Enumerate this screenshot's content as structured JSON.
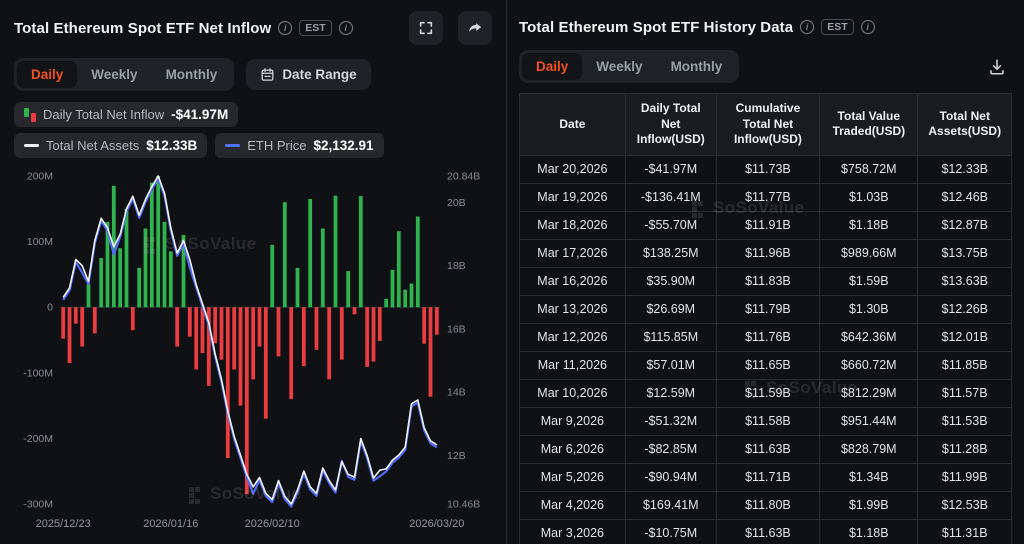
{
  "watermark": "SoSoValue",
  "left_panel": {
    "title": "Total Ethereum Spot ETF Net Inflow",
    "est_label": "EST",
    "tabs": [
      {
        "label": "Daily",
        "active": true
      },
      {
        "label": "Weekly",
        "active": false
      },
      {
        "label": "Monthly",
        "active": false
      }
    ],
    "date_range_label": "Date Range",
    "legend": [
      {
        "label": "Daily Total Net Inflow",
        "value": "-$41.97M"
      },
      {
        "label": "Total Net Assets",
        "value": "$12.33B"
      },
      {
        "label": "ETH Price",
        "value": "$2,132.91"
      }
    ]
  },
  "right_panel": {
    "title": "Total Ethereum Spot ETF History Data",
    "est_label": "EST",
    "tabs": [
      {
        "label": "Daily",
        "active": true
      },
      {
        "label": "Weekly",
        "active": false
      },
      {
        "label": "Monthly",
        "active": false
      }
    ],
    "table": {
      "headers": [
        "Date",
        "Daily Total Net Inflow(USD)",
        "Cumulative Total Net Inflow(USD)",
        "Total Value Traded(USD)",
        "Total Net Assets(USD)"
      ],
      "rows": [
        [
          "Mar 20,2026",
          "-$41.97M",
          "$11.73B",
          "$758.72M",
          "$12.33B"
        ],
        [
          "Mar 19,2026",
          "-$136.41M",
          "$11.77B",
          "$1.03B",
          "$12.46B"
        ],
        [
          "Mar 18,2026",
          "-$55.70M",
          "$11.91B",
          "$1.18B",
          "$12.87B"
        ],
        [
          "Mar 17,2026",
          "$138.25M",
          "$11.96B",
          "$989.66M",
          "$13.75B"
        ],
        [
          "Mar 16,2026",
          "$35.90M",
          "$11.83B",
          "$1.59B",
          "$13.63B"
        ],
        [
          "Mar 13,2026",
          "$26.69M",
          "$11.79B",
          "$1.30B",
          "$12.26B"
        ],
        [
          "Mar 12,2026",
          "$115.85M",
          "$11.76B",
          "$642.36M",
          "$12.01B"
        ],
        [
          "Mar 11,2026",
          "$57.01M",
          "$11.65B",
          "$660.72M",
          "$11.85B"
        ],
        [
          "Mar 10,2026",
          "$12.59M",
          "$11.59B",
          "$812.29M",
          "$11.57B"
        ],
        [
          "Mar 9,2026",
          "-$51.32M",
          "$11.58B",
          "$951.44M",
          "$11.53B"
        ],
        [
          "Mar 6,2026",
          "-$82.85M",
          "$11.63B",
          "$828.79M",
          "$11.28B"
        ],
        [
          "Mar 5,2026",
          "-$90.94M",
          "$11.71B",
          "$1.34B",
          "$11.99B"
        ],
        [
          "Mar 4,2026",
          "$169.41M",
          "$11.80B",
          "$1.99B",
          "$12.53B"
        ],
        [
          "Mar 3,2026",
          "-$10.75M",
          "$11.63B",
          "$1.18B",
          "$11.31B"
        ]
      ]
    }
  },
  "chart_data": {
    "type": "bar",
    "title": "Total Ethereum Spot ETF Net Inflow",
    "x_tick_labels": [
      "2025/12/23",
      "2026/01/16",
      "2026/02/10",
      "2026/03/20"
    ],
    "x_tick_indices": [
      0,
      17,
      33,
      59
    ],
    "left_axis": {
      "ticks": [
        "200M",
        "100M",
        "0",
        "-100M",
        "-200M",
        "-300M"
      ],
      "tick_values": [
        200,
        100,
        0,
        -100,
        -200,
        -300
      ],
      "range": [
        -300,
        200
      ],
      "unit": "USD millions"
    },
    "right_axis": {
      "ticks": [
        "20.84B",
        "20B",
        "18B",
        "16B",
        "14B",
        "12B",
        "10.46B"
      ],
      "tick_values": [
        20.84,
        20,
        18,
        16,
        14,
        12,
        10.46
      ],
      "range": [
        10.46,
        20.84
      ],
      "unit": "USD billions"
    },
    "colors": {
      "positive": "#30b34e",
      "negative": "#e93d41",
      "assets_line": "#f2f3f6",
      "eth_line": "#4e6bf5"
    },
    "series": [
      {
        "name": "Daily Total Net Inflow",
        "type": "bar",
        "unit": "USD M",
        "values": [
          -48,
          -85,
          -25,
          -60,
          35,
          -40,
          75,
          130,
          185,
          90,
          150,
          -35,
          60,
          120,
          190,
          200,
          130,
          85,
          -60,
          110,
          -45,
          -95,
          -70,
          -120,
          -55,
          -80,
          -230,
          -95,
          -150,
          -285,
          -110,
          -60,
          -170,
          95,
          -75,
          160,
          -140,
          60,
          -90,
          165,
          -65,
          120,
          -110,
          170,
          -80,
          55,
          -10.75,
          169.41,
          -90.94,
          -82.85,
          -51.32,
          12.59,
          57.01,
          115.85,
          26.69,
          35.9,
          138.25,
          -55.7,
          -136.41,
          -41.97
        ]
      },
      {
        "name": "Total Net Assets",
        "type": "line",
        "unit": "USD B",
        "values": [
          17.0,
          17.3,
          18.2,
          18.0,
          17.5,
          18.8,
          19.5,
          19.2,
          18.6,
          19.0,
          19.8,
          20.2,
          19.6,
          20.1,
          20.5,
          20.84,
          20.3,
          19.2,
          18.4,
          18.8,
          18.2,
          17.4,
          16.8,
          16.2,
          15.2,
          14.4,
          13.4,
          12.6,
          12.0,
          11.4,
          11.0,
          11.3,
          10.8,
          10.6,
          11.2,
          10.7,
          10.46,
          10.9,
          11.5,
          11.0,
          10.8,
          11.6,
          11.2,
          10.9,
          11.8,
          11.4,
          11.31,
          12.53,
          11.99,
          11.28,
          11.53,
          11.57,
          11.85,
          12.01,
          12.26,
          13.63,
          13.75,
          12.87,
          12.46,
          12.33
        ]
      },
      {
        "name": "ETH Price",
        "type": "line",
        "unit": "USD",
        "values": [
          2941,
          2993,
          3149,
          3090,
          3028,
          3252,
          3374,
          3322,
          3190,
          3287,
          3425,
          3495,
          3391,
          3477,
          3547,
          3606,
          3512,
          3322,
          3183,
          3252,
          3120,
          3010,
          2906,
          2803,
          2630,
          2491,
          2318,
          2180,
          2076,
          1972,
          1880,
          1955,
          1868,
          1834,
          1938,
          1851,
          1810,
          1886,
          1990,
          1903,
          1868,
          2007,
          1938,
          1886,
          2060,
          1972,
          1957,
          2168,
          2074,
          1951,
          1975,
          2002,
          2050,
          2078,
          2121,
          2358,
          2379,
          2227,
          2156,
          2132.91
        ]
      }
    ]
  }
}
